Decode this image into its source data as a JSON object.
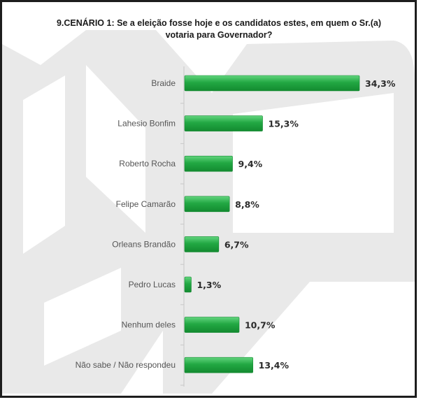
{
  "title_line1": "9.CENÁRIO 1: Se a eleição fosse hoje e os candidatos estes, em quem o Sr.(a)",
  "title_line2": "votaria para Governador?",
  "colors": {
    "bar": "#22a843",
    "bar_light": "#62d57e",
    "bar_dark": "#138a30",
    "watermark": "#e9e9e9"
  },
  "chart_data": {
    "type": "bar",
    "orientation": "horizontal",
    "categories": [
      "Braide",
      "Lahesio Bonfim",
      "Roberto Rocha",
      "Felipe Camarão",
      "Orleans Brandão",
      "Pedro Lucas",
      "Nenhum deles",
      "Não sabe / Não respondeu"
    ],
    "values": [
      34.3,
      15.3,
      9.4,
      8.8,
      6.7,
      1.3,
      10.7,
      13.4
    ],
    "value_labels": [
      "34,3%",
      "15,3%",
      "9,4%",
      "8,8%",
      "6,7%",
      "1,3%",
      "10,7%",
      "13,4%"
    ],
    "unit": "%",
    "xlim": [
      0,
      35
    ],
    "grid": false,
    "legend": "none"
  }
}
